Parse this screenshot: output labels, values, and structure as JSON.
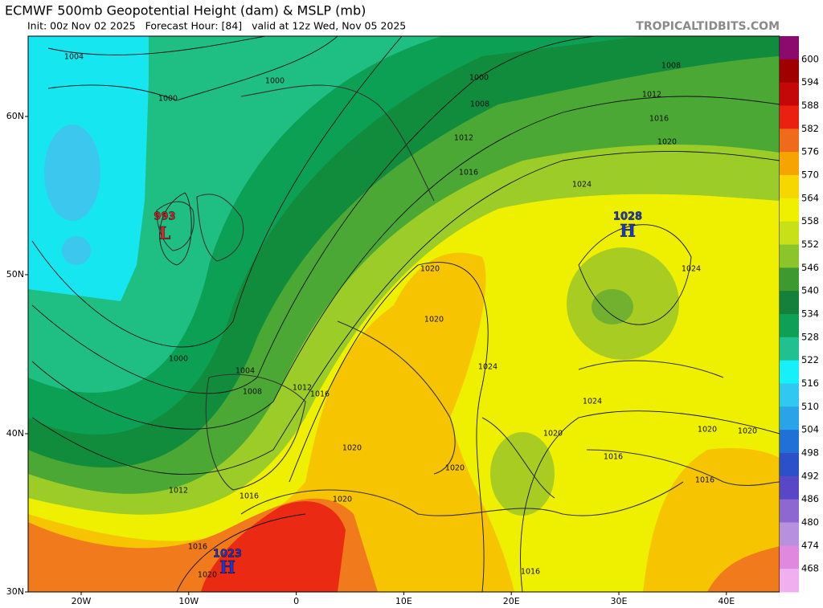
{
  "header": {
    "title": "ECMWF 500mb Geopotential Height (dam) & MSLP (mb)",
    "subtitle": "Init: 00z Nov 02 2025   Forecast Hour: [84]   valid at 12z Wed, Nov 05 2025",
    "source": "TROPICALTIDBITS.COM"
  },
  "colorbar": {
    "labels": [
      600,
      594,
      588,
      582,
      576,
      570,
      564,
      558,
      552,
      546,
      540,
      534,
      528,
      522,
      516,
      510,
      504,
      498,
      492,
      486,
      480,
      474,
      468
    ]
  },
  "axes": {
    "latitudes": [
      "60N",
      "50N",
      "40N",
      "30N"
    ],
    "longitudes": [
      "20W",
      "10W",
      "0",
      "10E",
      "20E",
      "30E",
      "40E"
    ]
  },
  "pressure_centers": [
    {
      "value": 993,
      "symbol": "L"
    },
    {
      "value": 1028,
      "symbol": "H"
    },
    {
      "value": 1023,
      "symbol": "H"
    }
  ],
  "isobar_labels": [
    1004,
    1000,
    1000,
    1000,
    1008,
    1008,
    1012,
    1016,
    1012,
    1020,
    1016,
    1024,
    1024,
    1020,
    1020,
    1024,
    1024,
    1020,
    1020,
    1020,
    1016,
    1016,
    1020,
    1020,
    1020,
    1016,
    1012,
    1008,
    1004,
    1000,
    1012,
    1016,
    1016,
    1020,
    1016
  ]
}
